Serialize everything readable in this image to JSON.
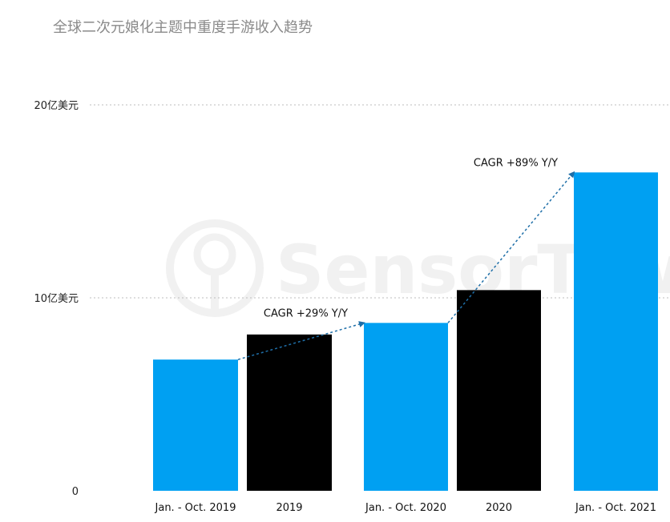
{
  "chart_data": {
    "type": "bar",
    "title": "全球二次元娘化主题中重度手游收入趋势",
    "categories": [
      "Jan. - Oct. 2019",
      "2019",
      "Jan. - Oct. 2020",
      "2020",
      "Jan. - Oct. 2021"
    ],
    "values": [
      6.8,
      8.1,
      8.7,
      10.4,
      16.5
    ],
    "yticks": [
      {
        "value": 0,
        "label": "0"
      },
      {
        "value": 10,
        "label": "10亿美元"
      },
      {
        "value": 20,
        "label": "20亿美元"
      }
    ],
    "ylim": [
      0,
      20
    ],
    "grid": true,
    "colors": [
      "#00a0f2",
      "#000000",
      "#00a0f2",
      "#000000",
      "#00a0f2"
    ],
    "annotations": [
      {
        "text": "CAGR +29% Y/Y",
        "from_index": 0,
        "to_index": 2
      },
      {
        "text": "CAGR +89% Y/Y",
        "from_index": 2,
        "to_index": 4
      }
    ],
    "watermark": "SensorTower",
    "arrow_color": "#1f6fa8"
  }
}
